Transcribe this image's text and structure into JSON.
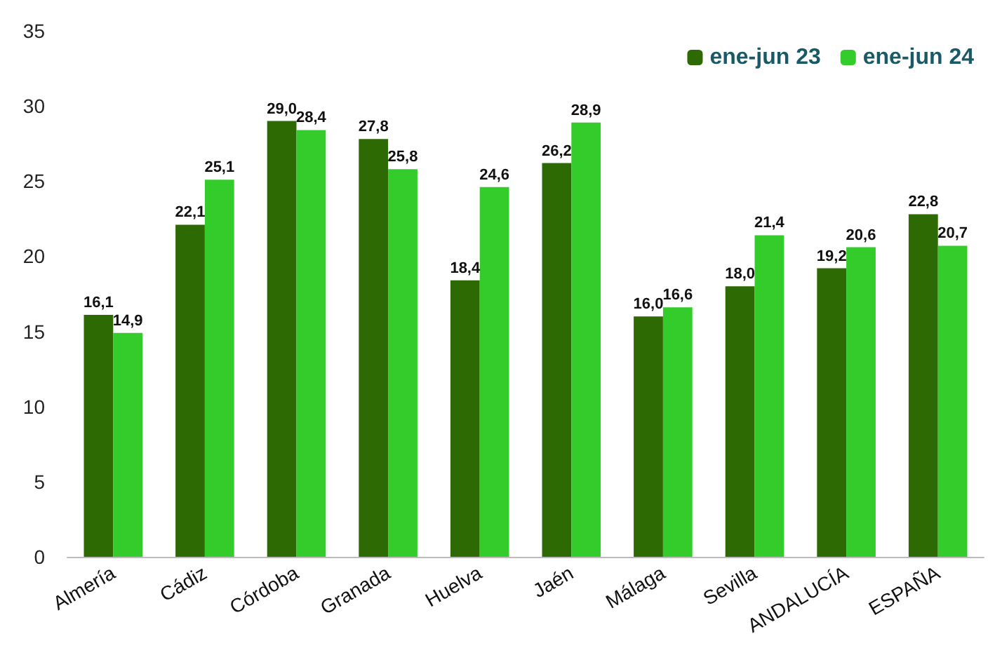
{
  "chart_data": {
    "type": "bar",
    "categories": [
      "Almería",
      "Cádiz",
      "Córdoba",
      "Granada",
      "Huelva",
      "Jaén",
      "Málaga",
      "Sevilla",
      "ANDALUCÍA",
      "ESPAÑA"
    ],
    "series": [
      {
        "name": "ene-jun 23",
        "color": "#2d6a04",
        "values": [
          16.1,
          22.1,
          29.0,
          27.8,
          18.4,
          26.2,
          16.0,
          18.0,
          19.2,
          22.8
        ],
        "value_labels": [
          "16,1",
          "22,1",
          "29,0",
          "27,8",
          "18,4",
          "26,2",
          "16,0",
          "18,0",
          "19,2",
          "22,8"
        ]
      },
      {
        "name": "ene-jun 24",
        "color": "#33cc2a",
        "values": [
          14.9,
          25.1,
          28.4,
          25.8,
          24.6,
          28.9,
          16.6,
          21.4,
          20.6,
          20.7
        ],
        "value_labels": [
          "14,9",
          "25,1",
          "28,4",
          "25,8",
          "24,6",
          "28,9",
          "16,6",
          "21,4",
          "20,6",
          "20,7"
        ]
      }
    ],
    "ylim": [
      0,
      35
    ],
    "yticks": [
      0,
      5,
      10,
      15,
      20,
      25,
      30,
      35
    ],
    "grid": false,
    "legend": "top right"
  }
}
